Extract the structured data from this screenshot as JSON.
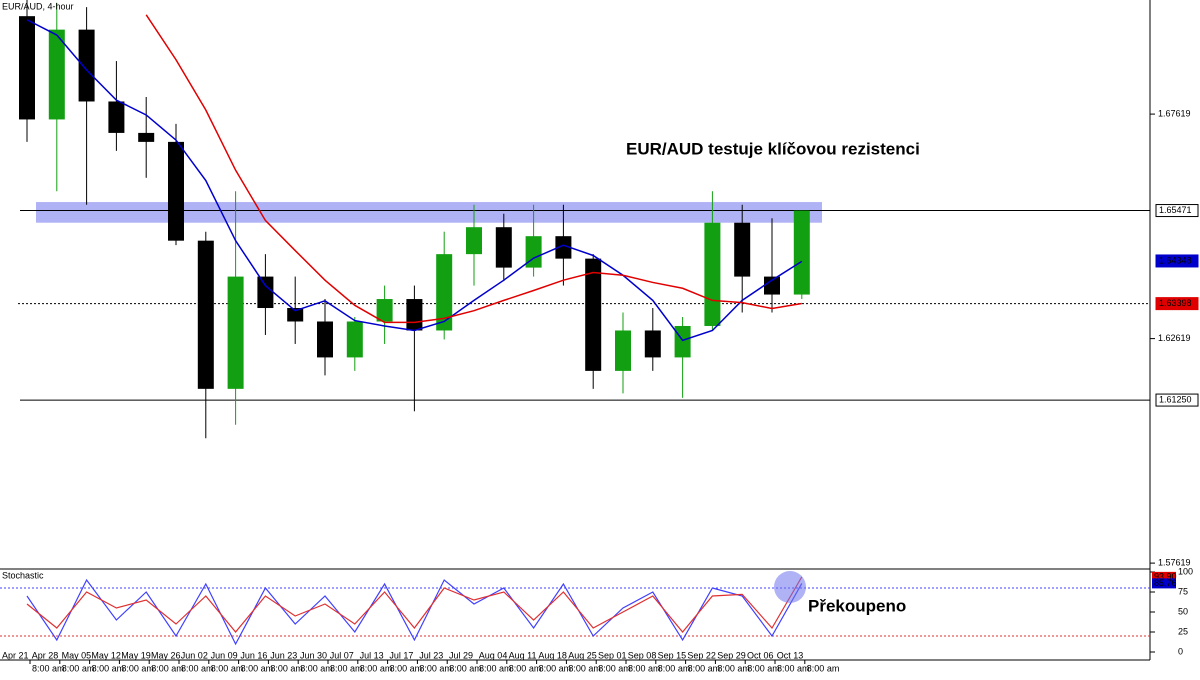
{
  "chart_data": [
    {
      "type": "candlestick",
      "title": "EUR/AUD, 4-hour",
      "annotation": "EUR/AUD testuje klíčovou rezistenci",
      "categories": [
        "Apr 21",
        "Apr 28",
        "May 05",
        "May 12",
        "May 19",
        "May 26",
        "Jun 02",
        "Jun 09",
        "Jun 16",
        "Jun 23",
        "Jun 30",
        "Jul 07",
        "Jul 13",
        "Jul 17",
        "Jul 23",
        "Jul 29",
        "Aug 04",
        "Aug 11",
        "Aug 18",
        "Aug 25",
        "Sep 01",
        "Sep 08",
        "Sep 15",
        "Sep 22",
        "Sep 29",
        "Oct 06",
        "Oct 13"
      ],
      "time_label": "8:00 am",
      "open": [
        1.698,
        1.675,
        1.695,
        1.679,
        1.672,
        1.67,
        1.648,
        1.615,
        1.64,
        1.633,
        1.63,
        1.622,
        1.63,
        1.635,
        1.628,
        1.645,
        1.651,
        1.642,
        1.649,
        1.644,
        1.619,
        1.628,
        1.622,
        1.629,
        1.652,
        1.64,
        1.636
      ],
      "high": [
        1.7016,
        1.701,
        1.7,
        1.688,
        1.68,
        1.674,
        1.65,
        1.659,
        1.645,
        1.64,
        1.635,
        1.631,
        1.638,
        1.638,
        1.65,
        1.656,
        1.654,
        1.656,
        1.656,
        1.645,
        1.632,
        1.633,
        1.631,
        1.659,
        1.656,
        1.653,
        1.6547
      ],
      "low": [
        1.67,
        1.659,
        1.656,
        1.668,
        1.662,
        1.647,
        1.604,
        1.607,
        1.627,
        1.625,
        1.618,
        1.619,
        1.625,
        1.61,
        1.626,
        1.638,
        1.639,
        1.64,
        1.638,
        1.615,
        1.614,
        1.619,
        1.613,
        1.628,
        1.632,
        1.632,
        1.635
      ],
      "close": [
        1.675,
        1.695,
        1.679,
        1.672,
        1.67,
        1.648,
        1.615,
        1.64,
        1.633,
        1.63,
        1.622,
        1.63,
        1.635,
        1.628,
        1.645,
        1.651,
        1.642,
        1.649,
        1.644,
        1.619,
        1.628,
        1.622,
        1.629,
        1.652,
        1.64,
        1.636,
        1.6547
      ],
      "up_color": "#12a012",
      "down_color": "#000000",
      "moving_averages": [
        {
          "color": "#0000cc",
          "values": [
            1.6972,
            1.6938,
            1.686,
            1.6793,
            1.676,
            1.6704,
            1.6614,
            1.648,
            1.638,
            1.6324,
            1.6346,
            1.6302,
            1.629,
            1.628,
            1.63,
            1.6347,
            1.6392,
            1.6441,
            1.647,
            1.6447,
            1.6403,
            1.6347,
            1.6258,
            1.628,
            1.6347,
            1.6392,
            1.6434
          ]
        },
        {
          "color": "#e00000",
          "values": [
            null,
            null,
            null,
            null,
            1.6983,
            1.6883,
            1.6771,
            1.6637,
            1.6525,
            1.6458,
            1.6392,
            1.6336,
            1.6298,
            1.6298,
            1.6307,
            1.6324,
            1.6347,
            1.6369,
            1.6392,
            1.6409,
            1.6403,
            1.6387,
            1.6374,
            1.6347,
            1.6342,
            1.6329,
            1.634
          ]
        }
      ],
      "ylim": [
        1.5751,
        1.7016
      ],
      "yticks": [
        1.57619,
        1.62619,
        1.67619
      ],
      "zone": [
        1.652,
        1.6566
      ],
      "levels": [
        {
          "value": 1.65471,
          "label": "1.65471",
          "tag_color": "#ffffff",
          "text_color": "#000000",
          "line": "solid"
        },
        {
          "value": 1.64348,
          "label": "1.64348",
          "tag_color": "#0000cc",
          "text_color": "#ffffff",
          "line": "none"
        },
        {
          "value": 1.63398,
          "label": "1.63398",
          "tag_color": "#e00000",
          "text_color": "#ffffff",
          "line": "dotted"
        },
        {
          "value": 1.6125,
          "label": "1.61250",
          "tag_color": "#ffffff",
          "text_color": "#000000",
          "line": "solid"
        }
      ]
    },
    {
      "type": "stochastic",
      "title": "Stochastic",
      "annotation": "Překoupeno",
      "series": [
        {
          "color": "#4040ff",
          "values": [
            70,
            15,
            90,
            40,
            75,
            20,
            85,
            10,
            80,
            35,
            70,
            25,
            85,
            15,
            90,
            60,
            80,
            30,
            85,
            20,
            55,
            75,
            15,
            80,
            70,
            20,
            85.76
          ]
        },
        {
          "color": "#e03030",
          "values": [
            60,
            30,
            75,
            55,
            65,
            35,
            70,
            25,
            70,
            45,
            60,
            35,
            75,
            30,
            80,
            65,
            75,
            40,
            75,
            30,
            50,
            70,
            25,
            70,
            72,
            30,
            93.9
          ]
        }
      ],
      "ylim": [
        0,
        100
      ],
      "yticks": [
        0,
        25,
        50,
        75,
        100
      ],
      "signal_levels": [
        {
          "value": 80,
          "color": "#4040ff"
        },
        {
          "value": 20,
          "color": "#e03030"
        }
      ],
      "tags": [
        {
          "value": 93.9,
          "label": "93.90",
          "tag_color": "#e00000"
        },
        {
          "value": 85.76,
          "label": "85.76",
          "tag_color": "#0000cc"
        }
      ]
    }
  ]
}
